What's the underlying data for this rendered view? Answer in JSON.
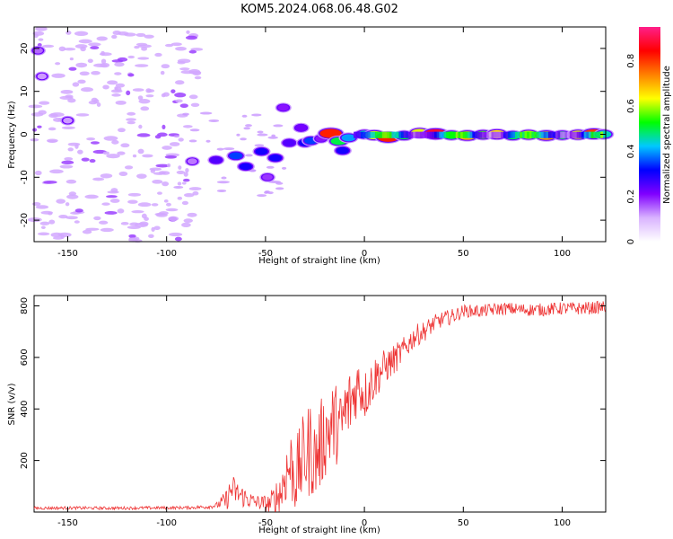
{
  "title": "KOM5.2024.068.06.48.G02",
  "chart_data": [
    {
      "type": "heatmap",
      "xlabel": "Height of straight line (km)",
      "ylabel": "Frequency (Hz)",
      "xlim": [
        -167,
        122
      ],
      "ylim": [
        -25,
        25
      ],
      "xticks": [
        -150,
        -100,
        -50,
        0,
        50,
        100
      ],
      "yticks": [
        -20,
        -10,
        0,
        10,
        20
      ],
      "colorbar": {
        "label": "Normalized spectral amplitude",
        "range": [
          0,
          0.95
        ],
        "ticks": [
          0,
          0.2,
          0.4,
          0.6,
          0.8
        ],
        "colors": [
          "#ffffff",
          "#d9b3ff",
          "#8000ff",
          "#0000ff",
          "#00c8ff",
          "#00ff00",
          "#ffff00",
          "#ff8000",
          "#ff0000",
          "#ff1f8a"
        ]
      },
      "blobs": [
        {
          "x": -165,
          "y": 19.5,
          "v": 0.15
        },
        {
          "x": -163,
          "y": 13.5,
          "v": 0.12
        },
        {
          "x": -150,
          "y": 3.2,
          "v": 0.12
        },
        {
          "x": -87,
          "y": -6.3,
          "v": 0.14
        },
        {
          "x": -75,
          "y": -6,
          "v": 0.25
        },
        {
          "x": -65,
          "y": -5,
          "v": 0.35
        },
        {
          "x": -60,
          "y": -7.5,
          "v": 0.3
        },
        {
          "x": -52,
          "y": -4,
          "v": 0.3
        },
        {
          "x": -49,
          "y": -10,
          "v": 0.18
        },
        {
          "x": -45,
          "y": -5.5,
          "v": 0.3
        },
        {
          "x": -41,
          "y": 6.2,
          "v": 0.2
        },
        {
          "x": -38,
          "y": -2,
          "v": 0.25
        },
        {
          "x": -32,
          "y": 1.5,
          "v": 0.22
        },
        {
          "x": -30,
          "y": -2,
          "v": 0.3
        },
        {
          "x": -27,
          "y": -1.5,
          "v": 0.35
        },
        {
          "x": -22,
          "y": -1,
          "v": 0.2
        },
        {
          "x": -17,
          "y": 0.2,
          "v": 0.82
        },
        {
          "x": -13,
          "y": -1.6,
          "v": 0.5
        },
        {
          "x": -11,
          "y": -3.8,
          "v": 0.3
        },
        {
          "x": -8,
          "y": -0.8,
          "v": 0.4
        },
        {
          "x": 0,
          "y": 0,
          "v": 0.45
        },
        {
          "x": 5,
          "y": -0.2,
          "v": 0.65
        },
        {
          "x": 12,
          "y": -0.7,
          "v": 0.82
        },
        {
          "x": 20,
          "y": -0.3,
          "v": 0.5
        },
        {
          "x": 28,
          "y": 0.3,
          "v": 0.62
        },
        {
          "x": 36,
          "y": 0.1,
          "v": 0.88
        },
        {
          "x": 44,
          "y": -0.2,
          "v": 0.5
        },
        {
          "x": 52,
          "y": -0.3,
          "v": 0.7
        },
        {
          "x": 60,
          "y": -0.1,
          "v": 0.55
        },
        {
          "x": 67,
          "y": 0,
          "v": 0.65
        },
        {
          "x": 75,
          "y": -0.3,
          "v": 0.5
        },
        {
          "x": 83,
          "y": -0.1,
          "v": 0.6
        },
        {
          "x": 92,
          "y": -0.3,
          "v": 0.72
        },
        {
          "x": 100,
          "y": -0.2,
          "v": 0.5
        },
        {
          "x": 108,
          "y": -0.1,
          "v": 0.62
        },
        {
          "x": 116,
          "y": 0.1,
          "v": 0.8
        },
        {
          "x": 121,
          "y": 0,
          "v": 0.45
        }
      ]
    },
    {
      "type": "line",
      "xlabel": "Height of straight line (km)",
      "ylabel": "SNR (v/v)",
      "xlim": [
        -167,
        122
      ],
      "ylim": [
        0,
        840
      ],
      "xticks": [
        -150,
        -100,
        -50,
        0,
        50,
        100
      ],
      "yticks": [
        200,
        400,
        600,
        800
      ],
      "series": [
        {
          "color": "#ee3333",
          "x": [
            -167,
            -150,
            -130,
            -110,
            -90,
            -80,
            -75,
            -70,
            -67,
            -64,
            -60,
            -56,
            -52,
            -48,
            -45,
            -42,
            -40,
            -37,
            -35,
            -33,
            -30,
            -27,
            -25,
            -22,
            -20,
            -17,
            -15,
            -12,
            -10,
            -8,
            -5,
            -3,
            0,
            5,
            10,
            15,
            20,
            25,
            30,
            35,
            40,
            45,
            50,
            60,
            70,
            80,
            90,
            100,
            110,
            122
          ],
          "y": [
            15,
            16,
            15,
            16,
            17,
            20,
            25,
            45,
            90,
            70,
            55,
            40,
            35,
            30,
            50,
            80,
            150,
            180,
            130,
            170,
            220,
            250,
            200,
            260,
            300,
            330,
            350,
            320,
            380,
            410,
            460,
            500,
            450,
            520,
            560,
            590,
            630,
            680,
            700,
            730,
            750,
            760,
            780,
            780,
            790,
            785,
            785,
            790,
            790,
            795
          ],
          "noise": [
            6,
            6,
            6,
            6,
            6,
            8,
            10,
            40,
            60,
            50,
            40,
            30,
            30,
            40,
            70,
            100,
            130,
            150,
            140,
            160,
            180,
            190,
            160,
            180,
            170,
            170,
            160,
            150,
            160,
            150,
            120,
            110,
            100,
            90,
            70,
            60,
            50,
            45,
            40,
            35,
            30,
            30,
            25,
            25,
            25,
            25,
            25,
            25,
            25,
            25
          ]
        }
      ]
    }
  ]
}
